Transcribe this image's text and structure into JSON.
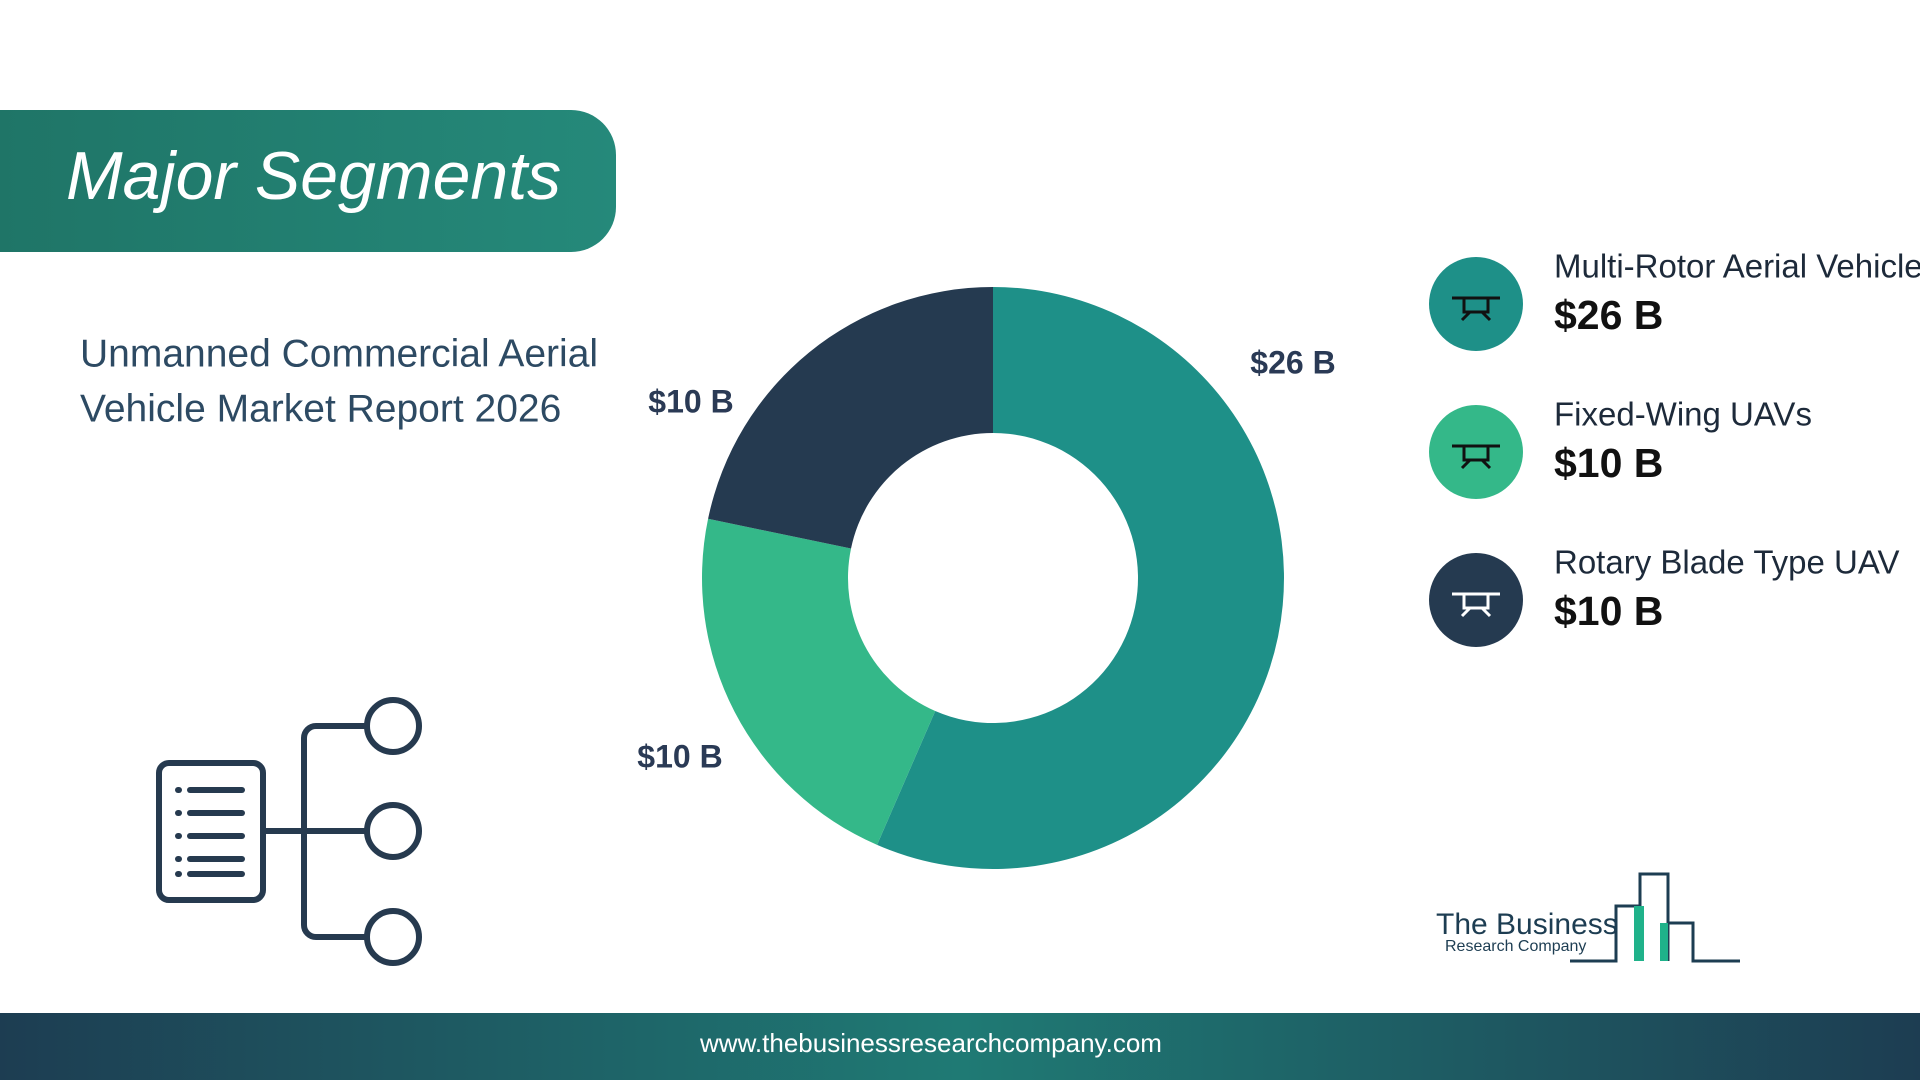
{
  "header": {
    "title": "Major Segments",
    "subtitle_lines": [
      "Unmanned Commercial Aerial",
      "Vehicle Market Report 2026"
    ]
  },
  "chart_data": {
    "type": "pie",
    "donut": true,
    "categories": [
      "Multi-Rotor Aerial Vehicles",
      "Fixed-Wing UAVs",
      "Rotary Blade Type UAV"
    ],
    "values": [
      26,
      10,
      10
    ],
    "value_labels": [
      "$26 B",
      "$10 B",
      "$10 B"
    ],
    "colors": [
      "#1e9088",
      "#34b889",
      "#253a50"
    ]
  },
  "logo": {
    "line1": "The Business",
    "line2": "Research Company"
  },
  "footer": {
    "url": "www.thebusinessresearchcompany.com"
  }
}
